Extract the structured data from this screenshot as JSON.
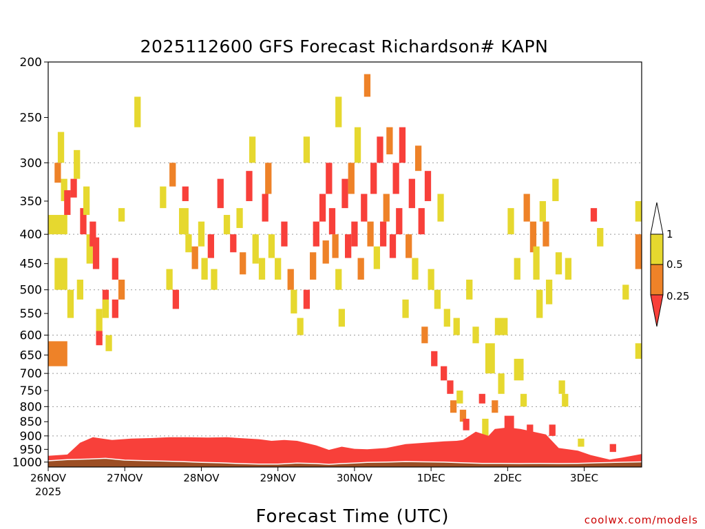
{
  "chart_data": {
    "type": "heatmap",
    "title": "2025112600 GFS Forecast Richardson# KAPN",
    "xlabel": "Forecast Time (UTC)",
    "ylabel": "",
    "credit": "coolwx.com/models",
    "x_start_year": "2025",
    "x_categories": [
      "26NOV",
      "27NOV",
      "28NOV",
      "29NOV",
      "30NOV",
      "1DEC",
      "2DEC",
      "3DEC"
    ],
    "x_range_hours": [
      0,
      186
    ],
    "y_axis": "pressure (hPa), reversed, log scale",
    "y_range": [
      1020,
      200
    ],
    "y_ticks": [
      200,
      250,
      300,
      350,
      400,
      450,
      500,
      550,
      600,
      650,
      700,
      750,
      800,
      850,
      900,
      950,
      1000
    ],
    "grid_levels": [
      300,
      400,
      500,
      600,
      700,
      800,
      900
    ],
    "grid": "dotted horizontal",
    "colorbar": {
      "levels": [
        "1",
        "0.5",
        "0.25"
      ],
      "bins": [
        {
          "range": "0.5-1",
          "color": "#e6d82f"
        },
        {
          "range": "0.25-0.5",
          "color": "#ee8228"
        },
        {
          "range": "<0.25",
          "color": "#f8403a"
        }
      ],
      "placement": "right"
    },
    "colors": {
      "yellow": "#e6d82f",
      "orange": "#ee8228",
      "red": "#f8403a",
      "ground": "#9c4e24"
    },
    "cells": [
      [
        0,
        6,
        680,
        615,
        "o"
      ],
      [
        0,
        6,
        400,
        370,
        "y"
      ],
      [
        2,
        6,
        500,
        440,
        "y"
      ],
      [
        2,
        4,
        325,
        300,
        "o"
      ],
      [
        3,
        5,
        300,
        265,
        "y"
      ],
      [
        4,
        6,
        350,
        320,
        "y"
      ],
      [
        5,
        7,
        370,
        335,
        "r"
      ],
      [
        6,
        8,
        560,
        500,
        "y"
      ],
      [
        7,
        9,
        345,
        320,
        "r"
      ],
      [
        8,
        10,
        320,
        285,
        "y"
      ],
      [
        9,
        11,
        520,
        480,
        "y"
      ],
      [
        10,
        12,
        400,
        360,
        "r"
      ],
      [
        11,
        13,
        370,
        330,
        "y"
      ],
      [
        12,
        14,
        450,
        400,
        "y"
      ],
      [
        13,
        15,
        420,
        380,
        "r"
      ],
      [
        14,
        16,
        460,
        405,
        "r"
      ],
      [
        15,
        17,
        590,
        540,
        "y"
      ],
      [
        15,
        17,
        625,
        590,
        "r"
      ],
      [
        17,
        19,
        540,
        500,
        "r"
      ],
      [
        17,
        19,
        560,
        520,
        "y"
      ],
      [
        18,
        20,
        640,
        600,
        "y"
      ],
      [
        20,
        22,
        560,
        520,
        "r"
      ],
      [
        20,
        22,
        480,
        440,
        "r"
      ],
      [
        22,
        24,
        520,
        480,
        "o"
      ],
      [
        22,
        24,
        380,
        360,
        "y"
      ],
      [
        27,
        29,
        260,
        230,
        "y"
      ],
      [
        35,
        37,
        360,
        330,
        "y"
      ],
      [
        37,
        39,
        500,
        460,
        "y"
      ],
      [
        39,
        41,
        540,
        500,
        "r"
      ],
      [
        38,
        40,
        330,
        300,
        "o"
      ],
      [
        41,
        44,
        400,
        360,
        "y"
      ],
      [
        42,
        44,
        350,
        330,
        "r"
      ],
      [
        43,
        45,
        430,
        400,
        "y"
      ],
      [
        45,
        47,
        460,
        420,
        "o"
      ],
      [
        47,
        49,
        420,
        380,
        "y"
      ],
      [
        48,
        50,
        480,
        440,
        "y"
      ],
      [
        50,
        52,
        440,
        400,
        "r"
      ],
      [
        51,
        53,
        500,
        460,
        "y"
      ],
      [
        53,
        55,
        360,
        320,
        "r"
      ],
      [
        55,
        57,
        400,
        370,
        "y"
      ],
      [
        57,
        59,
        430,
        400,
        "r"
      ],
      [
        59,
        61,
        390,
        360,
        "y"
      ],
      [
        60,
        62,
        470,
        430,
        "o"
      ],
      [
        62,
        64,
        350,
        310,
        "r"
      ],
      [
        63,
        65,
        300,
        270,
        "y"
      ],
      [
        64,
        66,
        450,
        400,
        "y"
      ],
      [
        66,
        68,
        480,
        440,
        "y"
      ],
      [
        67,
        69,
        380,
        340,
        "r"
      ],
      [
        68,
        70,
        340,
        300,
        "o"
      ],
      [
        69,
        71,
        440,
        400,
        "y"
      ],
      [
        71,
        73,
        480,
        440,
        "y"
      ],
      [
        73,
        75,
        420,
        380,
        "r"
      ],
      [
        75,
        77,
        500,
        460,
        "o"
      ],
      [
        76,
        78,
        550,
        500,
        "y"
      ],
      [
        78,
        80,
        600,
        560,
        "y"
      ],
      [
        80,
        82,
        540,
        500,
        "r"
      ],
      [
        80,
        82,
        300,
        270,
        "y"
      ],
      [
        82,
        84,
        480,
        430,
        "o"
      ],
      [
        83,
        85,
        420,
        380,
        "r"
      ],
      [
        85,
        87,
        380,
        340,
        "r"
      ],
      [
        86,
        88,
        450,
        410,
        "o"
      ],
      [
        87,
        89,
        340,
        300,
        "r"
      ],
      [
        88,
        90,
        400,
        360,
        "r"
      ],
      [
        89,
        91,
        440,
        400,
        "o"
      ],
      [
        90,
        92,
        500,
        460,
        "y"
      ],
      [
        90,
        92,
        260,
        230,
        "y"
      ],
      [
        91,
        93,
        580,
        540,
        "y"
      ],
      [
        92,
        94,
        360,
        320,
        "r"
      ],
      [
        93,
        95,
        440,
        400,
        "r"
      ],
      [
        94,
        96,
        340,
        300,
        "o"
      ],
      [
        95,
        97,
        420,
        380,
        "r"
      ],
      [
        96,
        98,
        300,
        260,
        "y"
      ],
      [
        97,
        99,
        480,
        440,
        "o"
      ],
      [
        98,
        100,
        380,
        340,
        "r"
      ],
      [
        99,
        101,
        230,
        210,
        "o"
      ],
      [
        100,
        102,
        420,
        380,
        "o"
      ],
      [
        101,
        103,
        340,
        300,
        "r"
      ],
      [
        102,
        104,
        460,
        420,
        "y"
      ],
      [
        103,
        105,
        300,
        270,
        "r"
      ],
      [
        104,
        106,
        420,
        380,
        "r"
      ],
      [
        105,
        107,
        380,
        340,
        "o"
      ],
      [
        106,
        108,
        290,
        260,
        "o"
      ],
      [
        107,
        109,
        440,
        400,
        "r"
      ],
      [
        108,
        110,
        340,
        300,
        "r"
      ],
      [
        109,
        111,
        400,
        360,
        "r"
      ],
      [
        110,
        112,
        300,
        260,
        "r"
      ],
      [
        111,
        113,
        560,
        520,
        "y"
      ],
      [
        112,
        114,
        440,
        400,
        "o"
      ],
      [
        113,
        115,
        360,
        320,
        "r"
      ],
      [
        114,
        116,
        480,
        440,
        "y"
      ],
      [
        115,
        117,
        310,
        280,
        "o"
      ],
      [
        116,
        118,
        400,
        360,
        "r"
      ],
      [
        117,
        119,
        620,
        580,
        "o"
      ],
      [
        118,
        120,
        350,
        310,
        "r"
      ],
      [
        119,
        121,
        500,
        460,
        "y"
      ],
      [
        120,
        122,
        680,
        640,
        "r"
      ],
      [
        121,
        123,
        540,
        500,
        "y"
      ],
      [
        122,
        124,
        380,
        340,
        "y"
      ],
      [
        123,
        125,
        720,
        680,
        "r"
      ],
      [
        124,
        126,
        580,
        540,
        "y"
      ],
      [
        125,
        127,
        760,
        720,
        "r"
      ],
      [
        126,
        128,
        820,
        780,
        "o"
      ],
      [
        127,
        129,
        600,
        560,
        "y"
      ],
      [
        128,
        130,
        790,
        750,
        "y"
      ],
      [
        129,
        131,
        850,
        810,
        "o"
      ],
      [
        130,
        132,
        880,
        840,
        "r"
      ],
      [
        131,
        133,
        520,
        480,
        "y"
      ],
      [
        133,
        135,
        620,
        580,
        "y"
      ],
      [
        135,
        137,
        790,
        760,
        "r"
      ],
      [
        136,
        138,
        900,
        840,
        "y"
      ],
      [
        137,
        140,
        700,
        620,
        "y"
      ],
      [
        139,
        141,
        820,
        780,
        "o"
      ],
      [
        140,
        144,
        600,
        560,
        "y"
      ],
      [
        141,
        143,
        760,
        700,
        "y"
      ],
      [
        143,
        146,
        900,
        830,
        "r"
      ],
      [
        144,
        146,
        400,
        360,
        "y"
      ],
      [
        146,
        149,
        720,
        660,
        "y"
      ],
      [
        146,
        148,
        480,
        440,
        "y"
      ],
      [
        148,
        150,
        800,
        760,
        "y"
      ],
      [
        149,
        151,
        380,
        340,
        "o"
      ],
      [
        150,
        152,
        900,
        860,
        "r"
      ],
      [
        151,
        153,
        430,
        380,
        "o"
      ],
      [
        152,
        154,
        480,
        420,
        "y"
      ],
      [
        153,
        155,
        560,
        500,
        "y"
      ],
      [
        154,
        156,
        380,
        350,
        "y"
      ],
      [
        155,
        157,
        420,
        380,
        "o"
      ],
      [
        156,
        158,
        530,
        480,
        "y"
      ],
      [
        157,
        159,
        900,
        860,
        "r"
      ],
      [
        158,
        160,
        350,
        320,
        "y"
      ],
      [
        159,
        161,
        470,
        430,
        "y"
      ],
      [
        160,
        162,
        760,
        720,
        "y"
      ],
      [
        161,
        163,
        800,
        760,
        "y"
      ],
      [
        162,
        164,
        480,
        440,
        "y"
      ],
      [
        166,
        168,
        940,
        910,
        "y"
      ],
      [
        170,
        172,
        380,
        360,
        "r"
      ],
      [
        172,
        174,
        420,
        390,
        "y"
      ],
      [
        176,
        178,
        960,
        930,
        "r"
      ],
      [
        180,
        182,
        520,
        490,
        "y"
      ],
      [
        184,
        186,
        460,
        400,
        "o"
      ],
      [
        184,
        186,
        380,
        350,
        "y"
      ],
      [
        184,
        186,
        660,
        620,
        "y"
      ]
    ],
    "pbl_top": [
      [
        0,
        975
      ],
      [
        6,
        970
      ],
      [
        10,
        925
      ],
      [
        14,
        905
      ],
      [
        20,
        915
      ],
      [
        26,
        910
      ],
      [
        32,
        908
      ],
      [
        38,
        905
      ],
      [
        44,
        905
      ],
      [
        50,
        906
      ],
      [
        56,
        905
      ],
      [
        60,
        908
      ],
      [
        66,
        912
      ],
      [
        70,
        918
      ],
      [
        74,
        915
      ],
      [
        78,
        918
      ],
      [
        84,
        935
      ],
      [
        88,
        952
      ],
      [
        92,
        940
      ],
      [
        96,
        948
      ],
      [
        100,
        950
      ],
      [
        106,
        945
      ],
      [
        112,
        930
      ],
      [
        118,
        925
      ],
      [
        124,
        920
      ],
      [
        128,
        918
      ],
      [
        130,
        915
      ],
      [
        134,
        885
      ],
      [
        138,
        900
      ],
      [
        140,
        875
      ],
      [
        144,
        870
      ],
      [
        148,
        875
      ],
      [
        152,
        885
      ],
      [
        156,
        895
      ],
      [
        160,
        945
      ],
      [
        166,
        955
      ],
      [
        170,
        972
      ],
      [
        176,
        990
      ],
      [
        180,
        982
      ],
      [
        186,
        968
      ]
    ],
    "surface_pressure": [
      [
        0,
        995
      ],
      [
        6,
        990
      ],
      [
        12,
        988
      ],
      [
        18,
        985
      ],
      [
        24,
        992
      ],
      [
        30,
        994
      ],
      [
        36,
        996
      ],
      [
        42,
        998
      ],
      [
        48,
        1001
      ],
      [
        54,
        1003
      ],
      [
        60,
        1006
      ],
      [
        66,
        1008
      ],
      [
        72,
        1008
      ],
      [
        78,
        1004
      ],
      [
        84,
        1006
      ],
      [
        88,
        1009
      ],
      [
        92,
        1006
      ],
      [
        96,
        1004
      ],
      [
        100,
        1001
      ],
      [
        106,
        1000
      ],
      [
        112,
        998
      ],
      [
        118,
        999
      ],
      [
        124,
        1000
      ],
      [
        130,
        1003
      ],
      [
        136,
        1005
      ],
      [
        142,
        1005
      ],
      [
        148,
        1006
      ],
      [
        154,
        1005
      ],
      [
        160,
        1006
      ],
      [
        166,
        1005
      ],
      [
        172,
        1003
      ],
      [
        178,
        1001
      ],
      [
        186,
        999
      ]
    ]
  }
}
